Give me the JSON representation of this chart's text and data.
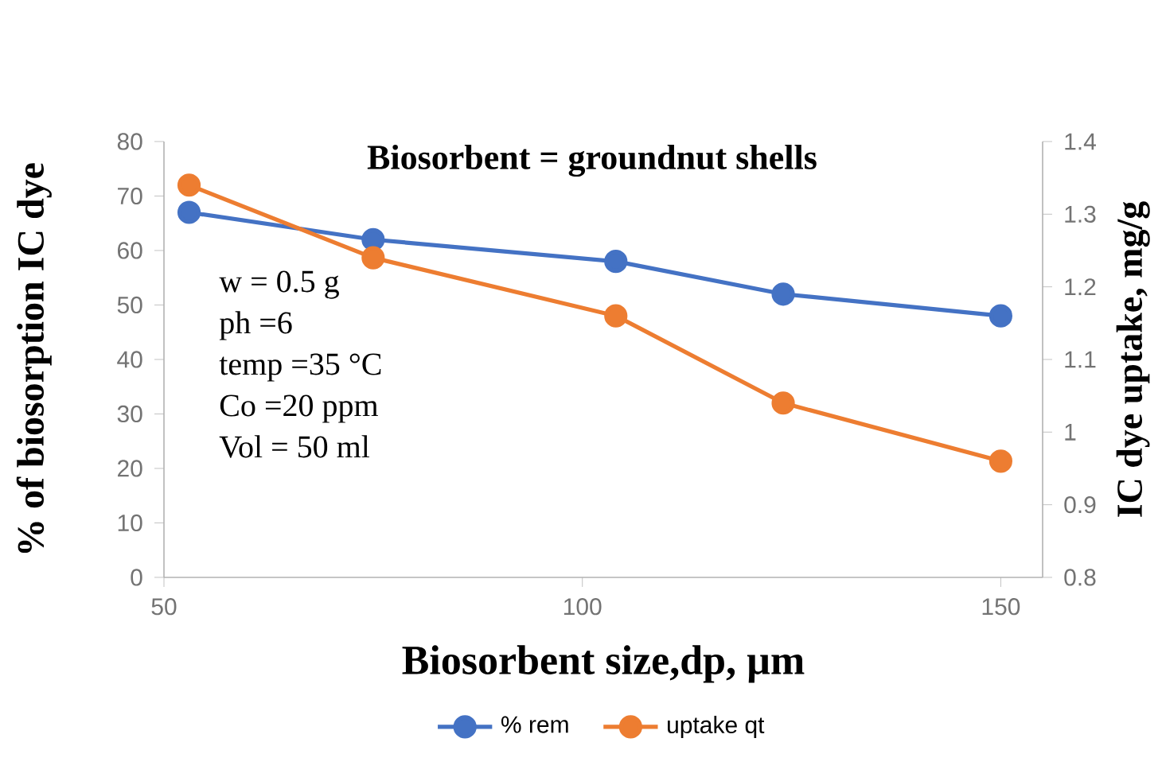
{
  "chart_data": {
    "type": "line",
    "title": "Biosorbent = groundnut shells",
    "xlabel": "Biosorbent size,dp, µm",
    "ylabel": "% of biosorption IC dye",
    "y2label": "IC dye uptake, mg/g",
    "x": [
      53,
      75,
      104,
      124,
      150
    ],
    "series": [
      {
        "name": "% rem",
        "color": "#4472c4",
        "values": [
          67,
          62,
          58,
          52,
          48
        ]
      },
      {
        "name": "uptake qt",
        "color": "#ed7d31",
        "axis": "y2",
        "values": [
          1.34,
          1.24,
          1.16,
          1.04,
          0.96
        ]
      }
    ],
    "xlim": [
      50,
      155
    ],
    "xticks": [
      50,
      100,
      150
    ],
    "ylim": [
      0,
      80
    ],
    "yticks": [
      0,
      10,
      20,
      30,
      40,
      50,
      60,
      70,
      80
    ],
    "y2lim": [
      0.8,
      1.4
    ],
    "y2ticks": [
      0.8,
      0.9,
      1,
      1.1,
      1.2,
      1.3,
      1.4
    ],
    "annotations": [
      "w = 0.5 g",
      "ph =6",
      "temp =35 °C",
      "Co =20 ppm",
      "Vol = 50 ml"
    ],
    "legend": "bottom",
    "marker": "circle",
    "line_style": "solid",
    "grid": false
  }
}
